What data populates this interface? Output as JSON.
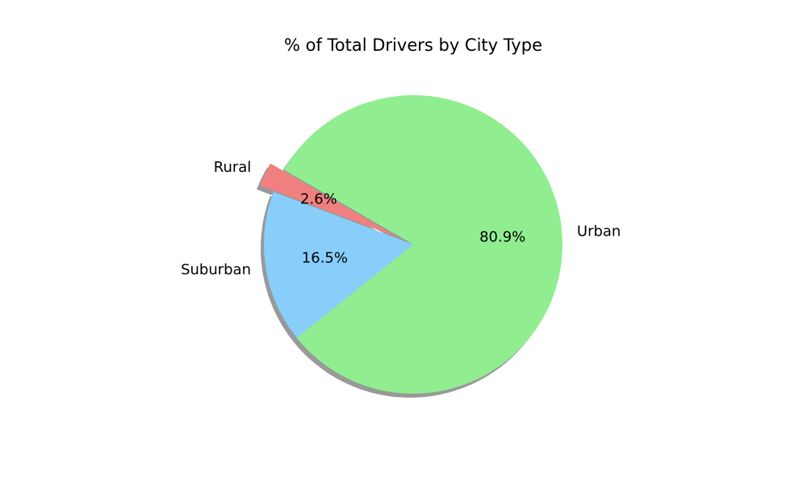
{
  "chart_data": {
    "type": "pie",
    "title": "% of Total Drivers by City Type",
    "slices": [
      {
        "label": "Rural",
        "value": 2.6,
        "percent_label": "2.6%",
        "color": "#f08080",
        "explode": 0.1
      },
      {
        "label": "Suburban",
        "value": 16.5,
        "percent_label": "16.5%",
        "color": "#87cefa",
        "explode": 0
      },
      {
        "label": "Urban",
        "value": 80.9,
        "percent_label": "80.9%",
        "color": "#90ee90",
        "explode": 0
      }
    ],
    "start_angle_deg": 150,
    "direction": "counterclockwise",
    "shadow": true,
    "shadow_color": "#808080"
  }
}
